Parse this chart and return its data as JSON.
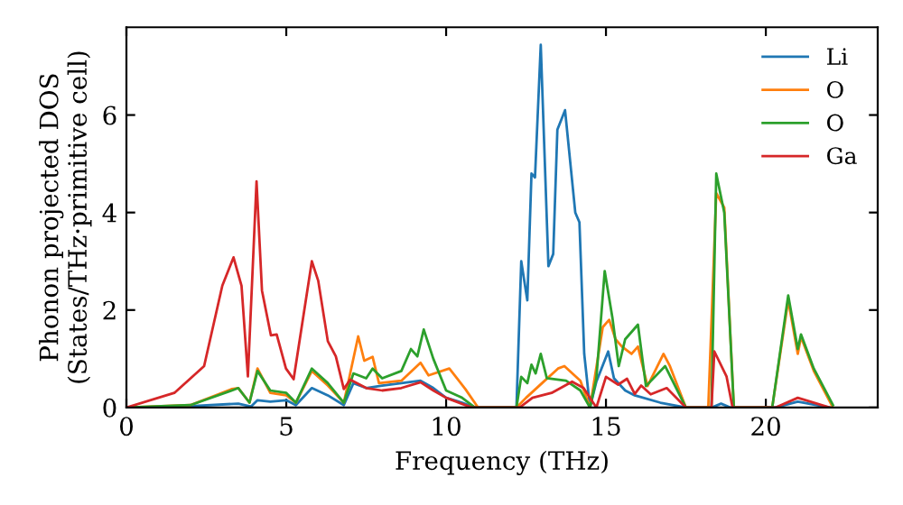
{
  "chart_data": {
    "type": "line",
    "xlabel": "Frequency (THz)",
    "ylabel": "Phonon projected DOS\n(States/THz·primitive cell)",
    "xlim": [
      0,
      23.5
    ],
    "ylim": [
      0,
      7.8
    ],
    "xticks": [
      0,
      5,
      10,
      15,
      20
    ],
    "yticks": [
      0,
      2,
      4,
      6
    ],
    "grid": false,
    "legend": "top right",
    "marker": "none",
    "line_style": "solid",
    "series": [
      {
        "name": "Li",
        "color": "#1f77b4",
        "x": [
          0,
          2,
          3.5,
          3.9,
          4.1,
          4.5,
          5.0,
          5.3,
          5.8,
          6.3,
          6.8,
          7.1,
          7.5,
          8.0,
          8.6,
          9.2,
          9.6,
          10.0,
          10.5,
          10.9,
          12.2,
          12.35,
          12.54,
          12.67,
          12.78,
          12.96,
          13.2,
          13.35,
          13.48,
          13.72,
          14.04,
          14.17,
          14.32,
          14.5,
          14.7,
          15.07,
          15.25,
          15.6,
          15.9,
          16.7,
          17.5,
          18.3,
          18.6,
          18.9,
          20.3,
          21.0,
          22.0
        ],
        "values": [
          0,
          0.03,
          0.08,
          0.02,
          0.15,
          0.12,
          0.15,
          0.05,
          0.4,
          0.25,
          0.05,
          0.5,
          0.4,
          0.45,
          0.5,
          0.55,
          0.4,
          0.2,
          0.1,
          0,
          0,
          3.0,
          2.2,
          4.8,
          4.72,
          7.44,
          2.9,
          3.15,
          5.7,
          6.1,
          4.0,
          3.8,
          1.1,
          0,
          0.53,
          1.15,
          0.6,
          0.35,
          0.25,
          0.1,
          0,
          0,
          0.08,
          0,
          0,
          0.12,
          0
        ]
      },
      {
        "name": "O",
        "color": "#ff7f0e",
        "x": [
          0,
          2,
          3.3,
          3.5,
          3.85,
          4.1,
          4.5,
          5.0,
          5.3,
          5.8,
          6.3,
          6.8,
          7.0,
          7.25,
          7.44,
          7.7,
          7.9,
          8.6,
          9.2,
          9.45,
          10.1,
          10.6,
          11.0,
          12.2,
          12.5,
          13.0,
          13.5,
          13.7,
          14.2,
          14.5,
          14.9,
          15.1,
          15.3,
          15.5,
          15.8,
          16.0,
          16.3,
          16.8,
          17.0,
          17.5,
          18.2,
          18.45,
          18.7,
          19.0,
          20.2,
          20.7,
          21.0,
          21.1,
          21.5,
          22.1
        ],
        "values": [
          0,
          0.05,
          0.38,
          0.4,
          0.1,
          0.8,
          0.3,
          0.25,
          0.1,
          0.75,
          0.45,
          0.1,
          0.7,
          1.46,
          0.96,
          1.04,
          0.5,
          0.55,
          0.92,
          0.66,
          0.8,
          0.38,
          0,
          0,
          0.2,
          0.5,
          0.8,
          0.85,
          0.55,
          0,
          1.65,
          1.8,
          1.4,
          1.25,
          1.1,
          1.25,
          0.44,
          1.1,
          0.85,
          0,
          0,
          4.4,
          4.1,
          0,
          0,
          2.2,
          1.1,
          1.45,
          0.75,
          0
        ]
      },
      {
        "name": "O",
        "color": "#2ca02c",
        "x": [
          0,
          2,
          3.3,
          3.5,
          3.85,
          4.1,
          4.5,
          5.0,
          5.3,
          5.8,
          6.3,
          6.8,
          7.1,
          7.5,
          7.7,
          8.0,
          8.6,
          8.9,
          9.1,
          9.3,
          9.6,
          10.0,
          10.5,
          10.9,
          12.2,
          12.35,
          12.54,
          12.67,
          12.8,
          12.96,
          13.15,
          13.75,
          14.2,
          14.5,
          14.7,
          14.96,
          15.2,
          15.4,
          15.6,
          16.0,
          16.25,
          16.85,
          17.5,
          18.3,
          18.45,
          18.7,
          19.0,
          20.2,
          20.7,
          21.0,
          21.1,
          21.5,
          22.1
        ],
        "values": [
          0,
          0.05,
          0.35,
          0.4,
          0.1,
          0.75,
          0.35,
          0.3,
          0.1,
          0.8,
          0.5,
          0.1,
          0.7,
          0.6,
          0.8,
          0.6,
          0.75,
          1.2,
          1.05,
          1.6,
          1.0,
          0.35,
          0.2,
          0,
          0,
          0.63,
          0.5,
          0.88,
          0.7,
          1.1,
          0.6,
          0.55,
          0.35,
          0,
          0.6,
          2.8,
          1.85,
          0.85,
          1.4,
          1.7,
          0.44,
          0.85,
          0,
          0,
          4.8,
          4.0,
          0,
          0,
          2.3,
          1.2,
          1.5,
          0.8,
          0.05
        ]
      },
      {
        "name": "Ga",
        "color": "#d62728",
        "x": [
          0,
          1.5,
          2.43,
          3.0,
          3.35,
          3.6,
          3.8,
          4.07,
          4.24,
          4.52,
          4.7,
          4.99,
          5.23,
          5.8,
          6.0,
          6.3,
          6.55,
          6.8,
          7.0,
          7.5,
          8.0,
          8.6,
          9.2,
          9.6,
          10.0,
          10.8,
          12.3,
          12.7,
          13.3,
          13.94,
          14.3,
          14.7,
          15.0,
          15.38,
          15.66,
          15.9,
          16.1,
          16.4,
          16.9,
          17.5,
          18.3,
          18.39,
          18.77,
          18.96,
          20.3,
          21.0,
          22.0
        ],
        "values": [
          0,
          0.3,
          0.85,
          2.5,
          3.08,
          2.5,
          0.64,
          4.64,
          2.4,
          1.48,
          1.5,
          0.8,
          0.58,
          3.0,
          2.6,
          1.36,
          1.05,
          0.38,
          0.57,
          0.4,
          0.35,
          0.4,
          0.52,
          0.35,
          0.2,
          0,
          0,
          0.2,
          0.3,
          0.53,
          0.4,
          0,
          0.63,
          0.47,
          0.59,
          0.28,
          0.45,
          0.27,
          0.4,
          0,
          0,
          1.15,
          0.64,
          0,
          0,
          0.2,
          0
        ]
      }
    ]
  }
}
